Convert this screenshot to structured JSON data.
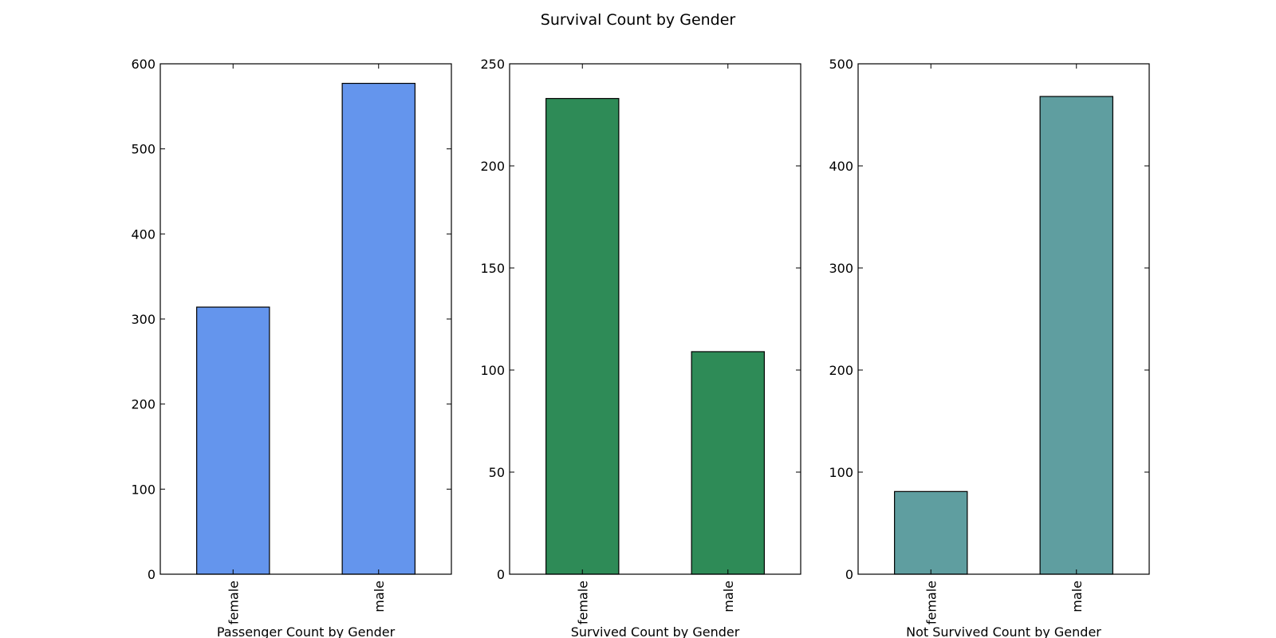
{
  "figure": {
    "title": "Survival Count by Gender"
  },
  "chart_data": [
    {
      "type": "bar",
      "xlabel": "Passenger Count by Gender",
      "ylabel": "",
      "categories": [
        "female",
        "male"
      ],
      "values": [
        314,
        577
      ],
      "ylim": [
        0,
        600
      ],
      "yticks": [
        0,
        100,
        200,
        300,
        400,
        500,
        600
      ],
      "color": "#6495ed",
      "grid": false
    },
    {
      "type": "bar",
      "xlabel": "Survived Count by Gender",
      "ylabel": "",
      "categories": [
        "female",
        "male"
      ],
      "values": [
        233,
        109
      ],
      "ylim": [
        0,
        250
      ],
      "yticks": [
        0,
        50,
        100,
        150,
        200,
        250
      ],
      "color": "#2e8b57",
      "grid": false
    },
    {
      "type": "bar",
      "xlabel": "Not Survived Count by Gender",
      "ylabel": "",
      "categories": [
        "female",
        "male"
      ],
      "values": [
        81,
        468
      ],
      "ylim": [
        0,
        500
      ],
      "yticks": [
        0,
        100,
        200,
        300,
        400,
        500
      ],
      "color": "#5f9ea0",
      "grid": false
    }
  ]
}
